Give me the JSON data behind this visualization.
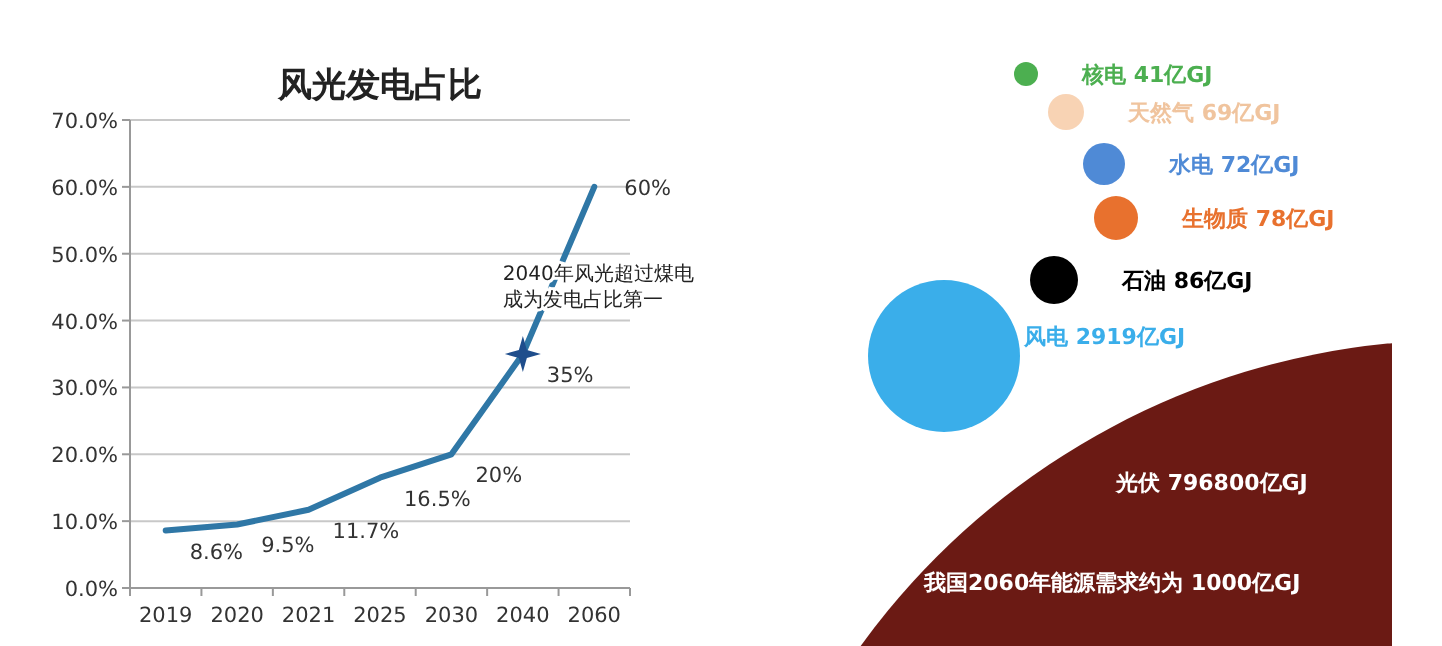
{
  "chart_data": [
    {
      "type": "line",
      "title": "风光发电占比",
      "categories": [
        "2019",
        "2020",
        "2021",
        "2025",
        "2030",
        "2040",
        "2060"
      ],
      "series": [
        {
          "color": "#2f77a6",
          "values": [
            8.6,
            9.5,
            11.7,
            16.5,
            20,
            35,
            60
          ],
          "value_labels": [
            "8.6%",
            "9.5%",
            "11.7%",
            "16.5%",
            "20%",
            "35%",
            "60%"
          ]
        }
      ],
      "ylim": [
        0,
        70
      ],
      "yticks": [
        {
          "value": 0,
          "label": "0.0%"
        },
        {
          "value": 10,
          "label": "10.0%"
        },
        {
          "value": 20,
          "label": "20.0%"
        },
        {
          "value": 30,
          "label": "30.0%"
        },
        {
          "value": 40,
          "label": "40.0%"
        },
        {
          "value": 50,
          "label": "50.0%"
        },
        {
          "value": 60,
          "label": "60.0%"
        },
        {
          "value": 70,
          "label": "70.0%"
        }
      ],
      "grid": "y",
      "marker": "none",
      "line_style": "solid",
      "annotations": [
        {
          "text": "2040年风光超过煤电成为发电占比第一",
          "x": "2040",
          "y": 35
        }
      ]
    },
    {
      "type": "other",
      "categories": [
        "核电",
        "天然气",
        "水电",
        "生物质",
        "石油",
        "风电",
        "光伏"
      ],
      "value_labels": [
        "41亿GJ",
        "69亿GJ",
        "72亿GJ",
        "78亿GJ",
        "86亿GJ",
        "2919亿GJ",
        "796800亿GJ"
      ],
      "colors": [
        "#4caf50",
        "#f8d3b4",
        "#4f8ad6",
        "#e8712e",
        "#000000",
        "#3aaeea",
        "#6b1a14"
      ],
      "annotations": [
        "我国2060年能源需求约为 1000亿GJ"
      ]
    }
  ]
}
